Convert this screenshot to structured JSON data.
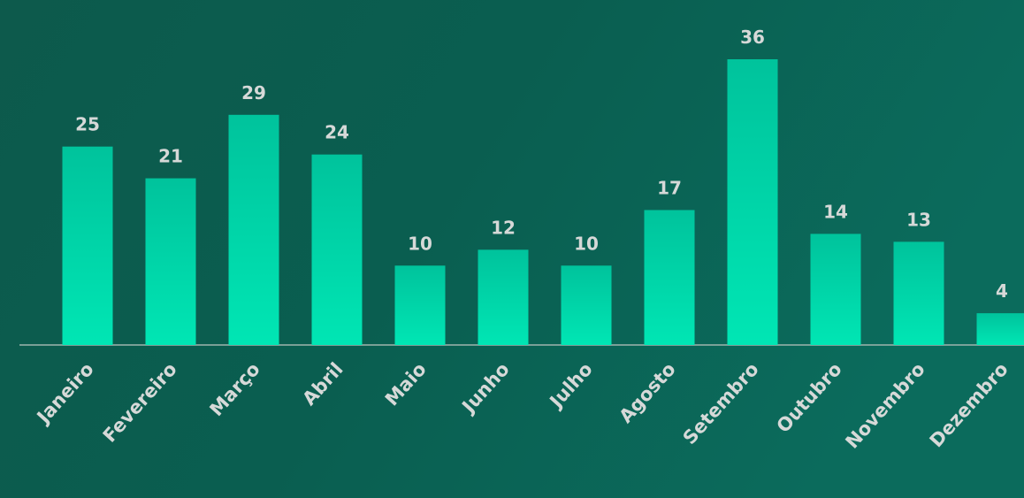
{
  "chart_data": {
    "type": "bar",
    "categories": [
      "Janeiro",
      "Fevereiro",
      "Março",
      "Abril",
      "Maio",
      "Junho",
      "Julho",
      "Agosto",
      "Setembro",
      "Outubro",
      "Novembro",
      "Dezembro"
    ],
    "values": [
      25,
      21,
      29,
      24,
      10,
      12,
      10,
      17,
      36,
      14,
      13,
      4
    ],
    "color": "#00d6a8"
  }
}
